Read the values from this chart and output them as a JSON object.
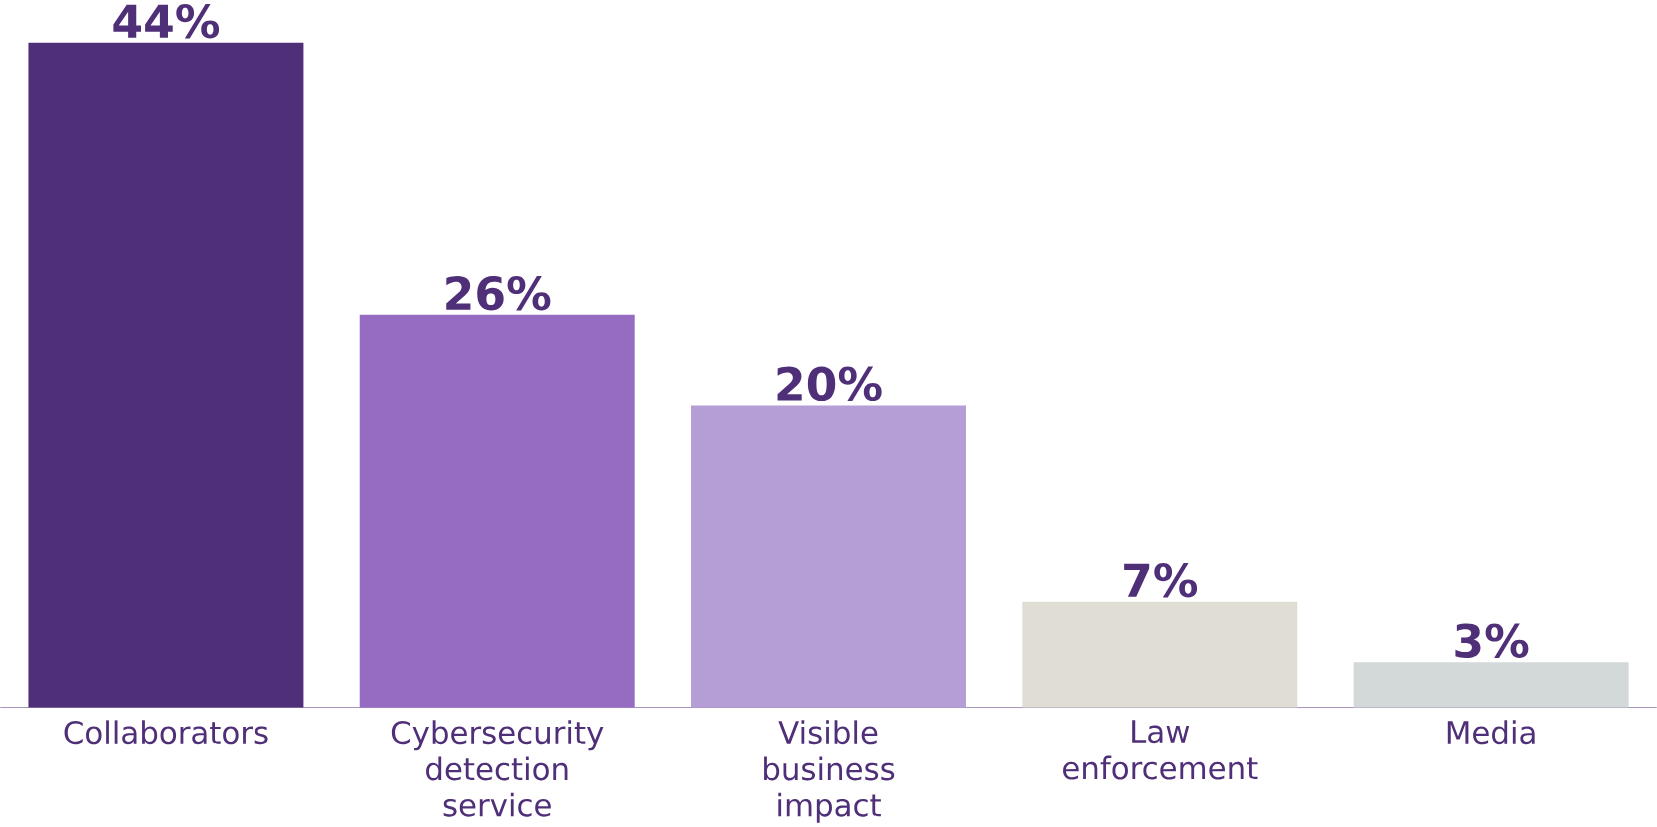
{
  "chart_data": {
    "type": "bar",
    "categories": [
      "Collaborators",
      "Cybersecurity detection service",
      "Visible business impact",
      "Law enforcement",
      "Media"
    ],
    "values": [
      44,
      26,
      20,
      7,
      3
    ],
    "value_labels": [
      "44%",
      "26%",
      "20%",
      "7%",
      "3%"
    ],
    "colors": [
      "#4f2f78",
      "#966cc3",
      "#b59dd6",
      "#dfddd4",
      "#d3d8d8"
    ]
  }
}
